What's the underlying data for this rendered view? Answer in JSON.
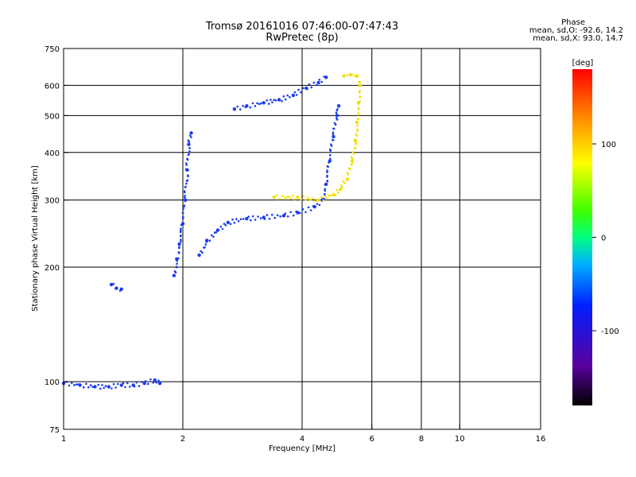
{
  "header": {
    "title_line1": "Tromsø 20161016 07:46:00-07:47:43",
    "title_line2": "RwPretec (8p)"
  },
  "phase_info": {
    "heading": "Phase",
    "line_o": "mean, sd,O: -92.6, 14.2",
    "line_x": "mean, sd,X:  93.0, 14.7"
  },
  "colorbar": {
    "unit_label": "[deg]",
    "range": [
      -180,
      180
    ],
    "ticks": [
      "100",
      "0",
      "-100"
    ],
    "tick_values": [
      100,
      0,
      -100
    ]
  },
  "chart_data": {
    "type": "scatter",
    "xlabel": "Frequency [MHz]",
    "ylabel": "Stationary phase Virtual Height [km]",
    "xscale": "log",
    "yscale": "log",
    "xlim": [
      1,
      16
    ],
    "ylim": [
      75,
      750
    ],
    "xticks": [
      1,
      2,
      4,
      6,
      8,
      10,
      16
    ],
    "xtick_labels": [
      "1",
      "2",
      "4",
      "6",
      "8",
      "10",
      "16"
    ],
    "x_gridlines": [
      2,
      4,
      6,
      8,
      10
    ],
    "yticks": [
      75,
      100,
      200,
      300,
      400,
      500,
      600,
      750
    ],
    "ytick_labels": [
      "75",
      "100",
      "200",
      "300",
      "400",
      "500",
      "600",
      "750"
    ],
    "y_gridlines": [
      100,
      200,
      300,
      400,
      500,
      600
    ],
    "grid": true,
    "traces": [
      {
        "mode": "O",
        "phase": -100,
        "points": [
          [
            1.0,
            99
          ],
          [
            1.1,
            98
          ],
          [
            1.2,
            97
          ],
          [
            1.3,
            97
          ],
          [
            1.4,
            98
          ],
          [
            1.5,
            98
          ],
          [
            1.6,
            99
          ],
          [
            1.7,
            101
          ],
          [
            1.75,
            99
          ]
        ]
      },
      {
        "mode": "O",
        "phase": -100,
        "points": [
          [
            1.32,
            180
          ],
          [
            1.36,
            176
          ],
          [
            1.4,
            175
          ]
        ]
      },
      {
        "mode": "O",
        "phase": -100,
        "points": [
          [
            1.9,
            190
          ],
          [
            1.93,
            210
          ],
          [
            1.96,
            230
          ],
          [
            2.0,
            260
          ],
          [
            2.03,
            300
          ],
          [
            2.05,
            360
          ],
          [
            2.07,
            420
          ],
          [
            2.1,
            450
          ]
        ]
      },
      {
        "mode": "O",
        "phase": -100,
        "points": [
          [
            2.2,
            215
          ],
          [
            2.3,
            235
          ],
          [
            2.45,
            250
          ],
          [
            2.6,
            262
          ],
          [
            2.9,
            268
          ],
          [
            3.2,
            270
          ],
          [
            3.6,
            273
          ],
          [
            3.9,
            278
          ],
          [
            4.3,
            288
          ],
          [
            4.5,
            300
          ],
          [
            4.6,
            330
          ],
          [
            4.7,
            380
          ],
          [
            4.8,
            440
          ],
          [
            4.9,
            500
          ],
          [
            4.95,
            530
          ]
        ]
      },
      {
        "mode": "O",
        "phase": -100,
        "points": [
          [
            2.7,
            520
          ],
          [
            2.9,
            530
          ],
          [
            3.2,
            540
          ],
          [
            3.5,
            550
          ],
          [
            3.8,
            565
          ],
          [
            4.1,
            590
          ],
          [
            4.4,
            610
          ],
          [
            4.6,
            630
          ]
        ]
      },
      {
        "mode": "X",
        "phase": 100,
        "points": [
          [
            3.4,
            305
          ],
          [
            3.9,
            305
          ],
          [
            4.4,
            300
          ],
          [
            4.8,
            310
          ],
          [
            5.0,
            320
          ],
          [
            5.2,
            340
          ],
          [
            5.35,
            380
          ],
          [
            5.45,
            430
          ],
          [
            5.5,
            480
          ],
          [
            5.55,
            540
          ],
          [
            5.6,
            600
          ],
          [
            5.5,
            635
          ],
          [
            5.3,
            640
          ],
          [
            5.1,
            635
          ]
        ]
      }
    ]
  }
}
